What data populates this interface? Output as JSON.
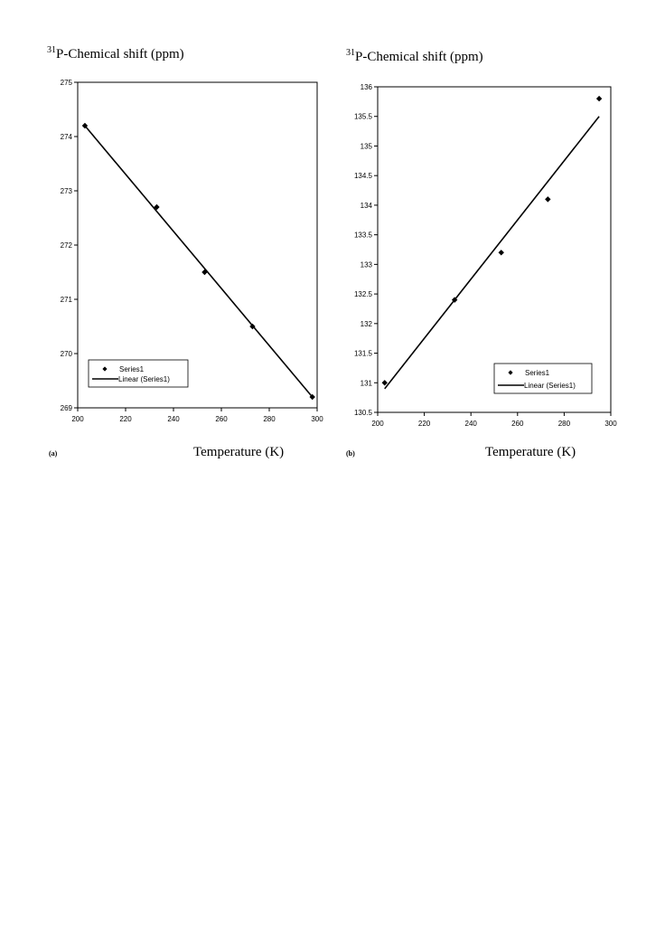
{
  "panels": [
    {
      "tag": "(a)",
      "ylabel_sup": "31",
      "ylabel_main": "P-Chemical shift (ppm)",
      "xlabel": "Temperature (K)"
    },
    {
      "tag": "(b)",
      "ylabel_sup": "31",
      "ylabel_main": "P-Chemical shift (ppm)",
      "xlabel": "Temperature (K)"
    }
  ],
  "chart_data": [
    {
      "type": "scatter",
      "title": "",
      "xlabel": "Temperature (K)",
      "ylabel": "31P-Chemical shift (ppm)",
      "xlim": [
        200,
        300
      ],
      "ylim": [
        269,
        275
      ],
      "xticks": [
        "200",
        "220",
        "240",
        "260",
        "280",
        "300"
      ],
      "yticks": [
        "269",
        "270",
        "271",
        "272",
        "273",
        "274",
        "275"
      ],
      "grid": false,
      "legend_position": "bottom-left",
      "series": [
        {
          "name": "Series1",
          "kind": "points",
          "x": [
            203,
            233,
            253,
            273,
            298
          ],
          "y": [
            274.2,
            272.7,
            271.5,
            270.5,
            269.2
          ]
        },
        {
          "name": "Linear (Series1)",
          "kind": "line",
          "x": [
            203,
            298
          ],
          "y": [
            274.2,
            269.2
          ]
        }
      ]
    },
    {
      "type": "scatter",
      "title": "",
      "xlabel": "Temperature (K)",
      "ylabel": "31P-Chemical shift (ppm)",
      "xlim": [
        200,
        300
      ],
      "ylim": [
        130.5,
        136
      ],
      "xticks": [
        "200",
        "220",
        "240",
        "260",
        "280",
        "300"
      ],
      "yticks": [
        "130.5",
        "131",
        "131.5",
        "132",
        "132.5",
        "133",
        "133.5",
        "134",
        "134.5",
        "135",
        "135.5",
        "136"
      ],
      "grid": false,
      "legend_position": "bottom-right",
      "series": [
        {
          "name": "Series1",
          "kind": "points",
          "x": [
            203,
            233,
            253,
            273,
            295
          ],
          "y": [
            131.0,
            132.4,
            133.2,
            134.1,
            135.8
          ]
        },
        {
          "name": "Linear (Series1)",
          "kind": "line",
          "x": [
            203,
            295
          ],
          "y": [
            130.9,
            135.5
          ]
        }
      ]
    }
  ]
}
